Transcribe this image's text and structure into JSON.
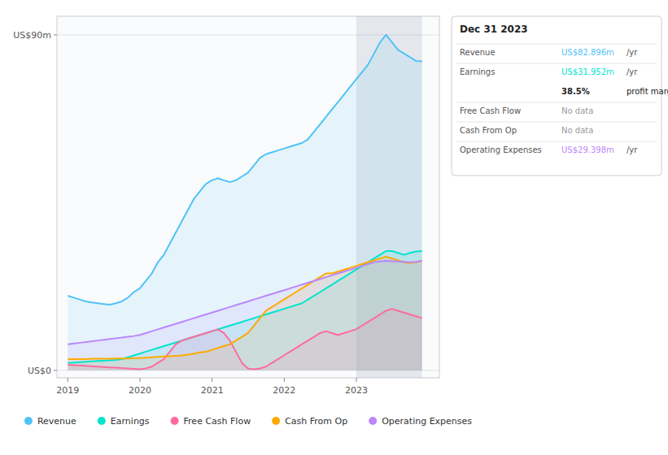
{
  "chart_data": {
    "type": "area",
    "x": [
      2019,
      2019.0832,
      2019.1664,
      2019.2497,
      2019.3329,
      2019.4161,
      2019.4993,
      2019.5825,
      2019.6658,
      2019.749,
      2019.8322,
      2019.9154,
      2019.9986,
      2020.0819,
      2020.1651,
      2020.2483,
      2020.3315,
      2020.4147,
      2020.498,
      2020.5812,
      2020.6644,
      2020.7476,
      2020.8308,
      2020.9141,
      2020.9973,
      2021.0805,
      2021.1637,
      2021.2469,
      2021.3302,
      2021.4134,
      2021.4966,
      2021.5798,
      2021.6631,
      2021.7463,
      2021.8295,
      2021.9127,
      2021.9959,
      2022.0792,
      2022.1624,
      2022.2456,
      2022.3288,
      2022.412,
      2022.4953,
      2022.5785,
      2022.6617,
      2022.7449,
      2022.8281,
      2022.9114,
      2022.9946,
      2023.0778,
      2023.161,
      2023.2442,
      2023.3275,
      2023.4107,
      2023.4939,
      2023.5771,
      2023.6603,
      2023.7436,
      2023.8268,
      2023.91
    ],
    "xlim": [
      2018.85,
      2024.15
    ],
    "xticks": [
      2019,
      2020,
      2021,
      2022,
      2023
    ],
    "ylim": [
      -2,
      95
    ],
    "yticks": [
      {
        "value": 0,
        "label": "US$0"
      },
      {
        "value": 90,
        "label": "US$90m"
      }
    ],
    "grid": true,
    "legend": "bottom",
    "highlight_x": [
      2023.0,
      2023.91
    ],
    "series": [
      {
        "name": "Revenue",
        "color": "#4fc3f7",
        "values": [
          20,
          19.5,
          19,
          18.5,
          18.2,
          18,
          17.8,
          17.6,
          18,
          18.5,
          19.5,
          21,
          22,
          24,
          26,
          29,
          31,
          34,
          37,
          40,
          43,
          46,
          48,
          50,
          51,
          51.5,
          51,
          50.5,
          51,
          52,
          53,
          55,
          57,
          58,
          58.5,
          59,
          59.5,
          60,
          60.5,
          61,
          62,
          64,
          66,
          68,
          70,
          72,
          74,
          76,
          78,
          80,
          82,
          85,
          88,
          90,
          88,
          86,
          85,
          84,
          83,
          82.9
        ]
      },
      {
        "name": "Earnings",
        "color": "#00e5cc",
        "values": [
          2,
          2.1,
          2.2,
          2.3,
          2.4,
          2.5,
          2.6,
          2.7,
          2.8,
          3,
          3.5,
          4,
          4.5,
          5,
          5.5,
          6,
          6.5,
          7,
          7.5,
          8,
          8.5,
          9,
          9.5,
          10,
          10.5,
          11,
          11.5,
          12,
          12.5,
          13,
          13.5,
          14,
          14.5,
          15,
          15.5,
          16,
          16.5,
          17,
          17.5,
          18,
          19,
          20,
          21,
          22,
          23,
          24,
          25,
          26,
          27,
          28,
          29,
          30,
          31,
          32,
          32,
          31.5,
          31,
          31.5,
          31.9,
          32
        ]
      },
      {
        "name": "Free Cash Flow",
        "color": "#ff6b9d",
        "values": [
          1.5,
          1.4,
          1.3,
          1.2,
          1.1,
          1.0,
          0.9,
          0.8,
          0.7,
          0.6,
          0.5,
          0.4,
          0.3,
          0.5,
          1,
          2,
          3,
          5,
          7,
          8,
          8.5,
          9,
          9.5,
          10,
          10.5,
          11,
          10,
          8,
          5,
          2,
          0.5,
          0.3,
          0.5,
          1,
          2,
          3,
          4,
          5,
          6,
          7,
          8,
          9,
          10,
          10.5,
          10,
          9.5,
          10,
          10.5,
          11,
          12,
          13,
          14,
          15,
          16,
          16.5,
          16,
          15.5,
          15,
          14.5,
          14
        ]
      },
      {
        "name": "Cash From Op",
        "color": "#ffaa00",
        "values": [
          3,
          3,
          3,
          3,
          3.1,
          3.1,
          3.1,
          3.1,
          3.2,
          3.2,
          3.2,
          3.3,
          3.3,
          3.4,
          3.5,
          3.6,
          3.7,
          3.8,
          3.9,
          4,
          4.2,
          4.5,
          4.8,
          5,
          5.5,
          6,
          6.5,
          7,
          8,
          9,
          10,
          12,
          14,
          16,
          17,
          18,
          19,
          20,
          21,
          22,
          23,
          24,
          25,
          26,
          26,
          26.5,
          27,
          27.5,
          28,
          28.5,
          29,
          29.5,
          30,
          30.5,
          30,
          29.5,
          29,
          28.8,
          29,
          29.4
        ]
      },
      {
        "name": "Operating Expenses",
        "color": "#bb86fc",
        "values": [
          7,
          7.2,
          7.4,
          7.6,
          7.8,
          8,
          8.2,
          8.4,
          8.6,
          8.8,
          9,
          9.2,
          9.5,
          10,
          10.5,
          11,
          11.5,
          12,
          12.5,
          13,
          13.5,
          14,
          14.5,
          15,
          15.5,
          16,
          16.5,
          17,
          17.5,
          18,
          18.5,
          19,
          19.5,
          20,
          20.5,
          21,
          21.5,
          22,
          22.5,
          23,
          23.5,
          24,
          24.5,
          25,
          25.5,
          26,
          26.5,
          27,
          27.5,
          28,
          28.5,
          29,
          29.2,
          29.4,
          29.3,
          29.2,
          29.1,
          29,
          29.1,
          29.4
        ]
      }
    ],
    "annotations": [
      {
        "title": "Dec 31 2023",
        "rows": [
          {
            "label": "Revenue",
            "value": "US$82.896m",
            "unit": "/yr"
          },
          {
            "label": "Earnings",
            "value": "US$31.952m",
            "unit": "/yr"
          },
          {
            "value": "38.5%",
            "unit": "profit margin"
          },
          {
            "label": "Free Cash Flow",
            "value": "No data"
          },
          {
            "label": "Cash From Op",
            "value": "No data"
          },
          {
            "label": "Operating Expenses",
            "value": "US$29.398m",
            "unit": "/yr"
          }
        ]
      }
    ]
  }
}
